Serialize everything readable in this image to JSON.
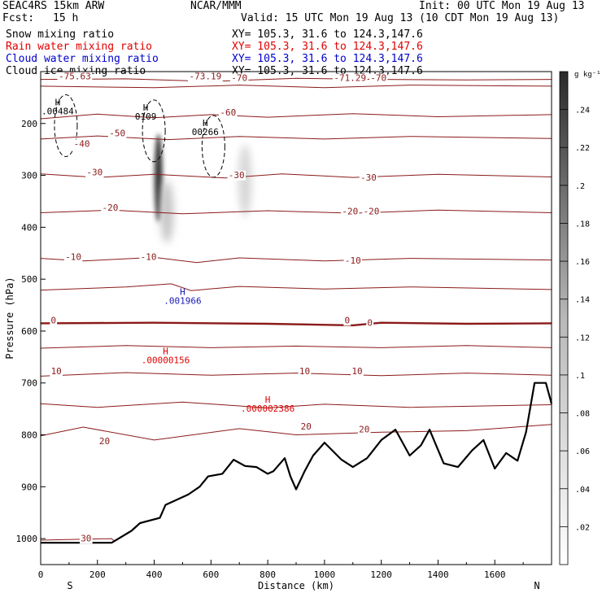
{
  "header": {
    "model": "SEAC4RS 15km ARW",
    "org": "NCAR/MMM",
    "init": "Init: 00 UTC Mon 19 Aug 13",
    "fcst_label": "Fcst:",
    "fcst_value": "15 h",
    "valid": "Valid: 15 UTC Mon 19 Aug 13 (10 CDT Mon 19 Aug 13)"
  },
  "fields": [
    {
      "name": "Snow mixing ratio",
      "xy": "XY= 105.3, 31.6 to 124.3,147.6",
      "color": "#000000"
    },
    {
      "name": "Rain water mixing ratio",
      "xy": "XY= 105.3, 31.6 to 124.3,147.6",
      "color": "#e00000"
    },
    {
      "name": "Cloud water mixing ratio",
      "xy": "XY= 105.3, 31.6 to 124.3,147.6",
      "color": "#0000cc"
    },
    {
      "name": "Cloud ice mixing ratio",
      "xy": "XY= 105.3, 31.6 to 124.3,147.6",
      "color": "#000000"
    }
  ],
  "colors": {
    "temperature": "#8b1a1a",
    "rain": "#e00000",
    "cloud_water": "#1a1ab4",
    "terrain": "#000000"
  },
  "chart_data": {
    "type": "cross-section",
    "xlabel": "Distance (km)",
    "ylabel": "Pressure (hPa)",
    "xlim": [
      0,
      1800
    ],
    "ylim": [
      1050,
      100
    ],
    "x_ticks": [
      0,
      200,
      400,
      600,
      800,
      1000,
      1200,
      1400,
      1600
    ],
    "y_ticks": [
      200,
      300,
      400,
      500,
      600,
      700,
      800,
      900,
      1000
    ],
    "x_end_labels": {
      "left": "S",
      "right": "N"
    },
    "colorbar": {
      "unit": "g kg⁻¹",
      "ticks": [
        ".24",
        ".22",
        ".2",
        ".18",
        ".16",
        ".14",
        ".12",
        ".1",
        ".08",
        ".06",
        ".04",
        ".02"
      ],
      "range": [
        0,
        0.26
      ]
    },
    "temperature_contour_labels": [
      {
        "text": "-75.63",
        "x": 120,
        "p": 115
      },
      {
        "text": "-73.19",
        "x": 580,
        "p": 115
      },
      {
        "text": "-70",
        "x": 700,
        "p": 118
      },
      {
        "text": "-71.29",
        "x": 1090,
        "p": 118
      },
      {
        "text": "-70",
        "x": 1190,
        "p": 118
      },
      {
        "text": "-60",
        "x": 660,
        "p": 185
      },
      {
        "text": "-50",
        "x": 270,
        "p": 225
      },
      {
        "text": "-40",
        "x": 145,
        "p": 245
      },
      {
        "text": "-30",
        "x": 190,
        "p": 300
      },
      {
        "text": "-30",
        "x": 690,
        "p": 305
      },
      {
        "text": "-30",
        "x": 1155,
        "p": 310
      },
      {
        "text": "-20",
        "x": 245,
        "p": 368
      },
      {
        "text": "-20",
        "x": 1090,
        "p": 375
      },
      {
        "text": "-20",
        "x": 1165,
        "p": 375
      },
      {
        "text": "-10",
        "x": 115,
        "p": 463
      },
      {
        "text": "-10",
        "x": 380,
        "p": 463
      },
      {
        "text": "-10",
        "x": 1100,
        "p": 470
      },
      {
        "text": "0",
        "x": 45,
        "p": 585
      },
      {
        "text": "0",
        "x": 1080,
        "p": 585
      },
      {
        "text": "0",
        "x": 1160,
        "p": 590
      },
      {
        "text": "10",
        "x": 55,
        "p": 683
      },
      {
        "text": "10",
        "x": 930,
        "p": 683
      },
      {
        "text": "10",
        "x": 1115,
        "p": 683
      },
      {
        "text": "20",
        "x": 225,
        "p": 818
      },
      {
        "text": "20",
        "x": 935,
        "p": 790
      },
      {
        "text": "20",
        "x": 1140,
        "p": 795
      },
      {
        "text": "30",
        "x": 160,
        "p": 1005
      }
    ],
    "snow_maxima": [
      {
        "label": "H",
        "value": ".00484",
        "x": 60,
        "p": 165
      },
      {
        "label": "H",
        "value": "0109",
        "x": 370,
        "p": 175
      },
      {
        "label": "H",
        "value": "00266",
        "x": 580,
        "p": 205
      }
    ],
    "rain_maxima": [
      {
        "label": "H",
        "value": ".00000156",
        "x": 440,
        "p": 645
      },
      {
        "label": "H",
        "value": ".000002386",
        "x": 800,
        "p": 738
      }
    ],
    "cloud_water_maxima": [
      {
        "label": "H",
        "value": ".001966",
        "x": 500,
        "p": 530
      }
    ],
    "cloud_ice_shading": [
      {
        "x": 415,
        "p_top": 220,
        "p_bottom": 390,
        "peak": 0.24
      },
      {
        "x": 445,
        "p_top": 310,
        "p_bottom": 430,
        "peak": 0.07
      },
      {
        "x": 720,
        "p_top": 240,
        "p_bottom": 380,
        "peak": 0.05
      }
    ],
    "terrain_pressure": [
      {
        "x": 0,
        "p": 1008
      },
      {
        "x": 250,
        "p": 1008
      },
      {
        "x": 320,
        "p": 985
      },
      {
        "x": 350,
        "p": 970
      },
      {
        "x": 420,
        "p": 960
      },
      {
        "x": 440,
        "p": 935
      },
      {
        "x": 520,
        "p": 915
      },
      {
        "x": 560,
        "p": 900
      },
      {
        "x": 590,
        "p": 880
      },
      {
        "x": 640,
        "p": 875
      },
      {
        "x": 680,
        "p": 848
      },
      {
        "x": 720,
        "p": 860
      },
      {
        "x": 760,
        "p": 862
      },
      {
        "x": 800,
        "p": 875
      },
      {
        "x": 820,
        "p": 870
      },
      {
        "x": 860,
        "p": 845
      },
      {
        "x": 880,
        "p": 880
      },
      {
        "x": 900,
        "p": 905
      },
      {
        "x": 930,
        "p": 870
      },
      {
        "x": 960,
        "p": 840
      },
      {
        "x": 1000,
        "p": 815
      },
      {
        "x": 1060,
        "p": 848
      },
      {
        "x": 1100,
        "p": 862
      },
      {
        "x": 1150,
        "p": 845
      },
      {
        "x": 1200,
        "p": 810
      },
      {
        "x": 1250,
        "p": 790
      },
      {
        "x": 1300,
        "p": 840
      },
      {
        "x": 1340,
        "p": 820
      },
      {
        "x": 1370,
        "p": 790
      },
      {
        "x": 1420,
        "p": 855
      },
      {
        "x": 1470,
        "p": 862
      },
      {
        "x": 1520,
        "p": 830
      },
      {
        "x": 1560,
        "p": 810
      },
      {
        "x": 1600,
        "p": 865
      },
      {
        "x": 1640,
        "p": 835
      },
      {
        "x": 1680,
        "p": 850
      },
      {
        "x": 1710,
        "p": 795
      },
      {
        "x": 1740,
        "p": 700
      },
      {
        "x": 1780,
        "p": 700
      },
      {
        "x": 1800,
        "p": 740
      }
    ]
  }
}
